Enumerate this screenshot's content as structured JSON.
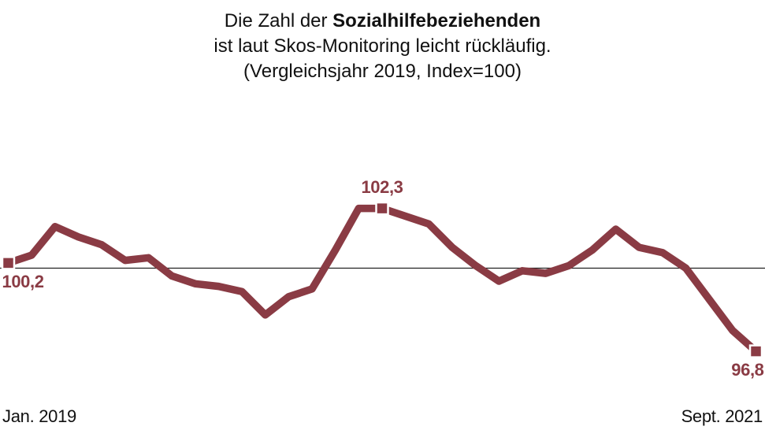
{
  "title": {
    "line1_prefix": "Die Zahl der ",
    "line1_bold": "Sozialhilfebeziehenden",
    "line2": "ist laut Skos-Monitoring leicht rückläufig.",
    "line3": "(Vergleichsjahr 2019, Index=100)"
  },
  "chart_data": {
    "type": "line",
    "x_interval": "monthly",
    "x_start_label": "Jan. 2019",
    "x_end_label": "Sept. 2021",
    "x": [
      "2019-01",
      "2019-02",
      "2019-03",
      "2019-04",
      "2019-05",
      "2019-06",
      "2019-07",
      "2019-08",
      "2019-09",
      "2019-10",
      "2019-11",
      "2019-12",
      "2020-01",
      "2020-02",
      "2020-03",
      "2020-04",
      "2020-05",
      "2020-06",
      "2020-07",
      "2020-08",
      "2020-09",
      "2020-10",
      "2020-11",
      "2020-12",
      "2021-01",
      "2021-02",
      "2021-03",
      "2021-04",
      "2021-05",
      "2021-06",
      "2021-07",
      "2021-08",
      "2021-09"
    ],
    "values": [
      100.2,
      100.5,
      101.6,
      101.2,
      100.9,
      100.3,
      100.4,
      99.7,
      99.4,
      99.3,
      99.1,
      98.2,
      98.9,
      99.2,
      100.7,
      102.3,
      102.3,
      102.0,
      101.7,
      100.8,
      100.1,
      99.5,
      99.9,
      99.8,
      100.1,
      100.7,
      101.5,
      100.8,
      100.6,
      100.0,
      98.8,
      97.6,
      96.8
    ],
    "baseline_value": 100,
    "ylim": [
      96,
      103
    ],
    "grid": "none",
    "legend": "none",
    "annotations": [
      {
        "index": 0,
        "value": 100.2,
        "label": "100,2",
        "placement": "below-left"
      },
      {
        "index": 16,
        "value": 102.3,
        "label": "102,3",
        "placement": "above"
      },
      {
        "index": 32,
        "value": 96.8,
        "label": "96,8",
        "placement": "below-right"
      }
    ],
    "colors": {
      "line": "#8a3b44",
      "baseline": "#222222",
      "marker_fill": "#8a3b44",
      "marker_outline": "#ffffff",
      "label_text": "#8a3b44",
      "title_text": "#111111"
    }
  }
}
